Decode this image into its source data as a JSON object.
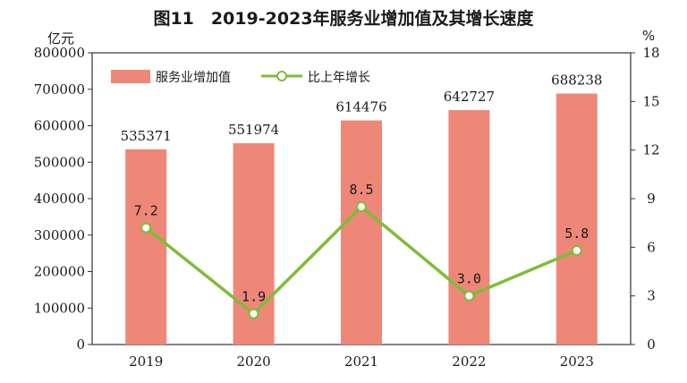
{
  "colors": {
    "bar": "#ee8778",
    "line": "#7cbd3a",
    "marker_fill": "#ffffff",
    "axis": "#333333"
  },
  "chart_data": {
    "type": "bar",
    "title": "图11　2019-2023年服务业增加值及其增长速度",
    "y_left_unit": "亿元",
    "y_right_unit": "%",
    "categories": [
      "2019",
      "2020",
      "2021",
      "2022",
      "2023"
    ],
    "series": [
      {
        "name": "服务业增加值",
        "type": "bar",
        "axis": "left",
        "values": [
          535371,
          551974,
          614476,
          642727,
          688238
        ],
        "labels": [
          "535371",
          "551974",
          "614476",
          "642727",
          "688238"
        ]
      },
      {
        "name": "比上年增长",
        "type": "line",
        "axis": "right",
        "values": [
          7.2,
          1.9,
          8.5,
          3.0,
          5.8
        ],
        "labels": [
          "7.2",
          "1.9",
          "8.5",
          "3.0",
          "5.8"
        ]
      }
    ],
    "ylim_left": [
      0,
      800000
    ],
    "yticks_left": [
      "0",
      "100000",
      "200000",
      "300000",
      "400000",
      "500000",
      "600000",
      "700000",
      "800000"
    ],
    "ylim_right": [
      0,
      18
    ],
    "yticks_right": [
      "0",
      "3",
      "6",
      "9",
      "12",
      "15",
      "18"
    ],
    "legend": "top-left",
    "grid": false
  }
}
